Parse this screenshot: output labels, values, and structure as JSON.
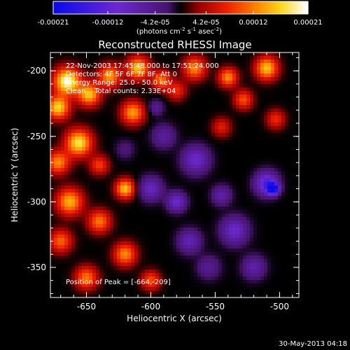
{
  "chart_data": {
    "type": "heatmap",
    "title": "Reconstructed RHESSI Image",
    "xlabel": "Heliocentric X (arcsec)",
    "ylabel": "Heliocentric Y (arcsec)",
    "xlim": [
      -678,
      -485
    ],
    "ylim": [
      -373,
      -186
    ],
    "x_ticks": [
      -650,
      -600,
      -550,
      -500
    ],
    "x_tick_labels": [
      "-650",
      "-600",
      "-550",
      "-500"
    ],
    "y_ticks": [
      -350,
      -300,
      -250,
      -200
    ],
    "y_tick_labels": [
      "-350",
      "-300",
      "-250",
      "-200"
    ],
    "colorbar": {
      "ticks": [
        -0.00021,
        -0.00012,
        -4.2e-05,
        4.2e-05,
        0.00012,
        0.00021
      ],
      "tick_labels": [
        "-0.00021",
        "-0.00012",
        "-4.2e-05",
        "4.2e-05",
        "0.00012",
        "0.00021"
      ],
      "range": [
        -0.00021,
        0.00021
      ],
      "unit_label": {
        "prefix": "(photons cm",
        "sup1": "-2",
        "mid1": " s",
        "sup2": "-1",
        "mid2": " asec",
        "sup3": "-2",
        "suffix": ")"
      }
    },
    "annotations": [
      "22-Nov-2003 17:45:48.000 to 17:51:24.000",
      "Detectors: 4F 5F 6F 7F 8F, Att 0",
      "Energy Range: 25.0 - 50.0 keV",
      "Clean    Total counts: 2.33E+04"
    ],
    "peak_label": "Position of Peak = [-664,-209]",
    "peak": {
      "x": -664,
      "y": -209
    },
    "blobs": [
      {
        "x": -665,
        "y": -208,
        "v": 0.00021,
        "s": 7
      },
      {
        "x": -672,
        "y": -228,
        "v": 0.00017,
        "s": 6
      },
      {
        "x": -648,
        "y": -218,
        "v": 0.00016,
        "s": 6
      },
      {
        "x": -632,
        "y": -204,
        "v": 0.00014,
        "s": 6
      },
      {
        "x": -610,
        "y": -198,
        "v": 0.00016,
        "s": 6
      },
      {
        "x": -592,
        "y": -207,
        "v": 0.00012,
        "s": 5
      },
      {
        "x": -566,
        "y": -198,
        "v": 0.00013,
        "s": 6
      },
      {
        "x": -540,
        "y": -205,
        "v": 0.00013,
        "s": 5
      },
      {
        "x": -510,
        "y": -198,
        "v": 0.00016,
        "s": 6
      },
      {
        "x": -528,
        "y": -222,
        "v": 0.0001,
        "s": 5
      },
      {
        "x": -614,
        "y": -232,
        "v": 0.00014,
        "s": 6
      },
      {
        "x": -656,
        "y": -255,
        "v": 0.00018,
        "s": 7
      },
      {
        "x": -672,
        "y": -270,
        "v": 0.00013,
        "s": 6
      },
      {
        "x": -640,
        "y": -272,
        "v": 9e-05,
        "s": 5
      },
      {
        "x": -620,
        "y": -290,
        "v": 0.00016,
        "s": 5
      },
      {
        "x": -663,
        "y": -300,
        "v": 0.00015,
        "s": 7
      },
      {
        "x": -640,
        "y": -315,
        "v": 0.00012,
        "s": 6
      },
      {
        "x": -670,
        "y": -330,
        "v": 0.00011,
        "s": 6
      },
      {
        "x": -620,
        "y": -340,
        "v": 0.00013,
        "s": 6
      },
      {
        "x": -650,
        "y": -358,
        "v": 0.00012,
        "s": 6
      },
      {
        "x": -600,
        "y": -360,
        "v": 0.0001,
        "s": 5
      },
      {
        "x": -580,
        "y": -215,
        "v": 8e-05,
        "s": 5
      },
      {
        "x": -545,
        "y": -243,
        "v": 7e-05,
        "s": 5
      },
      {
        "x": -503,
        "y": -237,
        "v": 8e-05,
        "s": 5
      },
      {
        "x": -590,
        "y": -250,
        "v": -6e-05,
        "s": 6
      },
      {
        "x": -565,
        "y": -268,
        "v": -0.0001,
        "s": 7
      },
      {
        "x": -600,
        "y": -290,
        "v": -9e-05,
        "s": 6
      },
      {
        "x": -510,
        "y": -286,
        "v": -0.00014,
        "s": 6
      },
      {
        "x": -505,
        "y": -290,
        "v": -0.00021,
        "s": 3
      },
      {
        "x": -535,
        "y": -322,
        "v": -0.0001,
        "s": 7
      },
      {
        "x": -570,
        "y": -330,
        "v": -8e-05,
        "s": 6
      },
      {
        "x": -580,
        "y": -300,
        "v": -0.0001,
        "s": 5
      },
      {
        "x": -545,
        "y": -295,
        "v": -7e-05,
        "s": 5
      },
      {
        "x": -520,
        "y": -350,
        "v": -7e-05,
        "s": 6
      },
      {
        "x": -596,
        "y": -228,
        "v": -5e-05,
        "s": 4
      },
      {
        "x": -620,
        "y": -260,
        "v": -3e-05,
        "s": 5
      },
      {
        "x": -555,
        "y": -350,
        "v": -5e-05,
        "s": 6
      }
    ]
  },
  "footer": {
    "date_stamp": "30-May-2013 04:18"
  }
}
